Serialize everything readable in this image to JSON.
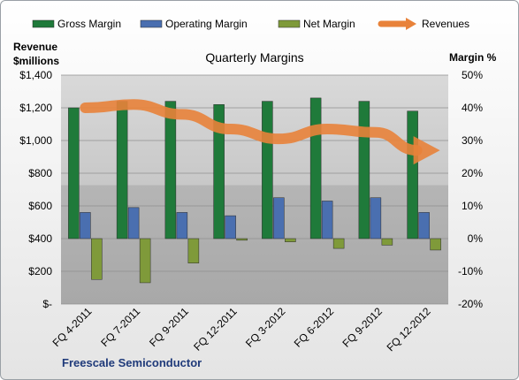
{
  "chart_data": {
    "type": "bar",
    "title": "Quarterly Margins",
    "ylabel_left": "Revenue $millions",
    "ylabel_right": "Margin %",
    "company": "Freescale Semiconductor",
    "categories": [
      "FQ 4-2011",
      "FQ 7-2011",
      "FQ 9-2011",
      "FQ 12-2011",
      "FQ 3-2012",
      "FQ 6-2012",
      "FQ 9-2012",
      "FQ 12-2012"
    ],
    "left_axis": {
      "ylim": [
        0,
        1400
      ],
      "ticks": [
        "$-",
        "$200",
        "$400",
        "$600",
        "$800",
        "$1,000",
        "$1,200",
        "$1,400"
      ]
    },
    "right_axis": {
      "ylim": [
        -20,
        50
      ],
      "ticks": [
        "-20%",
        "-10%",
        "0%",
        "10%",
        "20%",
        "30%",
        "40%",
        "50%"
      ]
    },
    "legend_position": "top",
    "series": [
      {
        "name": "Gross Margin",
        "axis": "right",
        "color": "#1f7a3a",
        "values": [
          40,
          42,
          42,
          41,
          42,
          43,
          42,
          39
        ]
      },
      {
        "name": "Operating Margin",
        "axis": "right",
        "color": "#4a6fb0",
        "values": [
          8,
          9.5,
          8,
          7,
          12.5,
          11.5,
          12.5,
          8
        ]
      },
      {
        "name": "Net Margin",
        "axis": "right",
        "color": "#7f9a3a",
        "values": [
          -12.5,
          -13.5,
          -7.5,
          -0.5,
          -1,
          -3,
          -2,
          -3.5
        ]
      },
      {
        "name": "Revenues",
        "axis": "left",
        "color": "#e8823a",
        "values": [
          1200,
          1220,
          1160,
          1070,
          1010,
          1070,
          1050,
          940
        ]
      }
    ]
  }
}
